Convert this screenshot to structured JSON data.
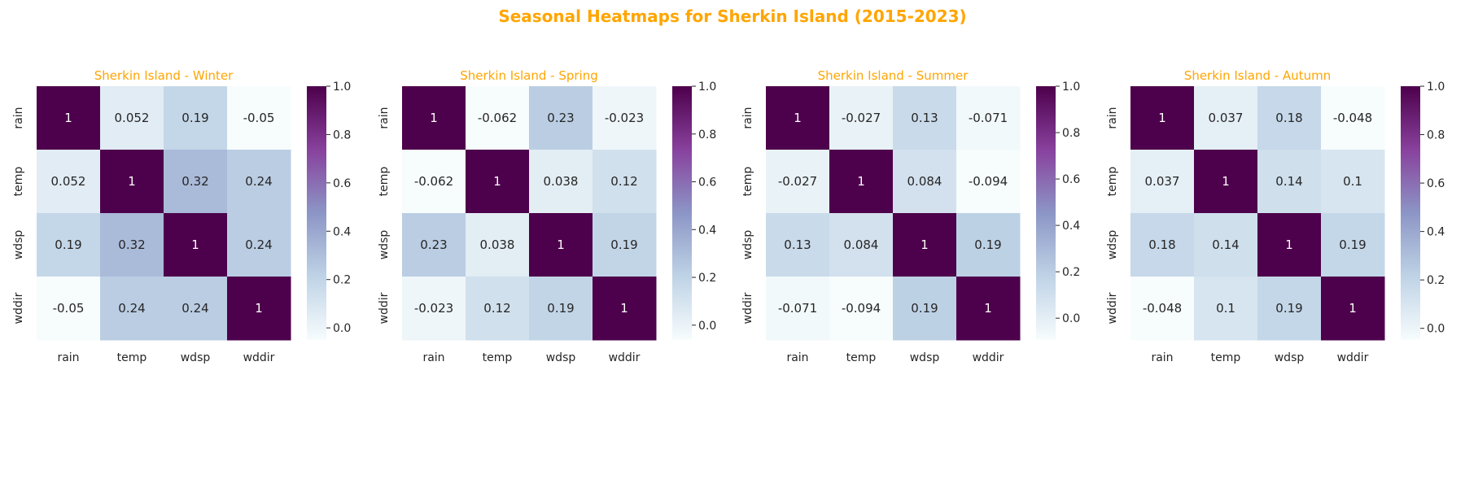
{
  "colors": {
    "title": "#ffa500",
    "text": "#262626",
    "cmap": [
      "#f7fcfd",
      "#bfd3e6",
      "#8c96c6",
      "#88419d",
      "#4d004b"
    ]
  },
  "chart_data": {
    "title": "Seasonal Heatmaps for Sherkin Island (2015-2023)",
    "variables": [
      "rain",
      "temp",
      "wdsp",
      "wddir"
    ],
    "panels": [
      {
        "type": "heatmap",
        "title": "Sherkin Island - Winter",
        "vmin": -0.05,
        "vmax": 1,
        "colorbar_ticks": [
          "0.0",
          "0.2",
          "0.4",
          "0.6",
          "0.8",
          "1.0"
        ],
        "matrix": [
          [
            1,
            0.052,
            0.19,
            -0.05
          ],
          [
            0.052,
            1,
            0.32,
            0.24
          ],
          [
            0.19,
            0.32,
            1,
            0.24
          ],
          [
            -0.05,
            0.24,
            0.24,
            1
          ]
        ],
        "labels": [
          [
            "1",
            "0.052",
            "0.19",
            "-0.05"
          ],
          [
            "0.052",
            "1",
            "0.32",
            "0.24"
          ],
          [
            "0.19",
            "0.32",
            "1",
            "0.24"
          ],
          [
            "-0.05",
            "0.24",
            "0.24",
            "1"
          ]
        ]
      },
      {
        "type": "heatmap",
        "title": "Sherkin Island - Spring",
        "vmin": -0.062,
        "vmax": 1,
        "colorbar_ticks": [
          "0.0",
          "0.2",
          "0.4",
          "0.6",
          "0.8",
          "1.0"
        ],
        "matrix": [
          [
            1,
            -0.062,
            0.23,
            -0.023
          ],
          [
            -0.062,
            1,
            0.038,
            0.12
          ],
          [
            0.23,
            0.038,
            1,
            0.19
          ],
          [
            -0.023,
            0.12,
            0.19,
            1
          ]
        ],
        "labels": [
          [
            "1",
            "-0.062",
            "0.23",
            "-0.023"
          ],
          [
            "-0.062",
            "1",
            "0.038",
            "0.12"
          ],
          [
            "0.23",
            "0.038",
            "1",
            "0.19"
          ],
          [
            "-0.023",
            "0.12",
            "0.19",
            "1"
          ]
        ]
      },
      {
        "type": "heatmap",
        "title": "Sherkin Island - Summer",
        "vmin": -0.094,
        "vmax": 1,
        "colorbar_ticks": [
          "0.0",
          "0.2",
          "0.4",
          "0.6",
          "0.8",
          "1.0"
        ],
        "matrix": [
          [
            1,
            -0.027,
            0.13,
            -0.071
          ],
          [
            -0.027,
            1,
            0.084,
            -0.094
          ],
          [
            0.13,
            0.084,
            1,
            0.19
          ],
          [
            -0.071,
            -0.094,
            0.19,
            1
          ]
        ],
        "labels": [
          [
            "1",
            "-0.027",
            "0.13",
            "-0.071"
          ],
          [
            "-0.027",
            "1",
            "0.084",
            "-0.094"
          ],
          [
            "0.13",
            "0.084",
            "1",
            "0.19"
          ],
          [
            "-0.071",
            "-0.094",
            "0.19",
            "1"
          ]
        ]
      },
      {
        "type": "heatmap",
        "title": "Sherkin Island - Autumn",
        "vmin": -0.048,
        "vmax": 1,
        "colorbar_ticks": [
          "0.0",
          "0.2",
          "0.4",
          "0.6",
          "0.8",
          "1.0"
        ],
        "matrix": [
          [
            1,
            0.037,
            0.18,
            -0.048
          ],
          [
            0.037,
            1,
            0.14,
            0.1
          ],
          [
            0.18,
            0.14,
            1,
            0.19
          ],
          [
            -0.048,
            0.1,
            0.19,
            1
          ]
        ],
        "labels": [
          [
            "1",
            "0.037",
            "0.18",
            "-0.048"
          ],
          [
            "0.037",
            "1",
            "0.14",
            "0.1"
          ],
          [
            "0.18",
            "0.14",
            "1",
            "0.19"
          ],
          [
            "-0.048",
            "0.1",
            "0.19",
            "1"
          ]
        ]
      }
    ]
  }
}
